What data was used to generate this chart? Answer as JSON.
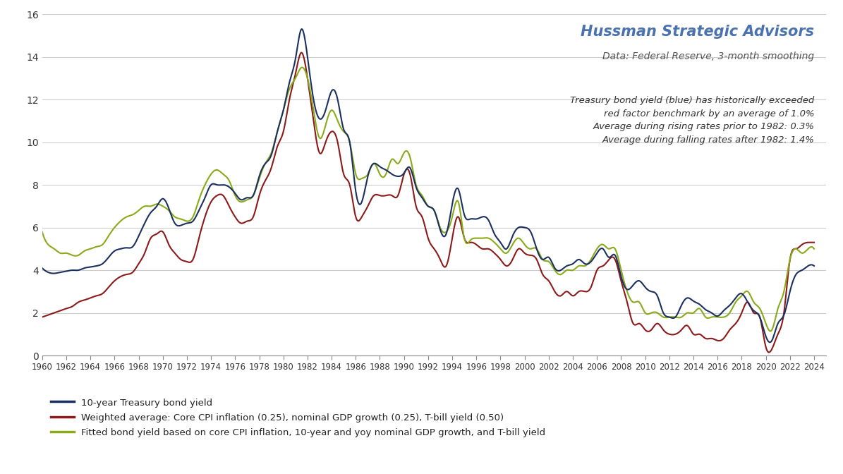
{
  "title": "Hussman Strategic Advisors",
  "subtitle": "Data: Federal Reserve, 3-month smoothing",
  "annotation_line1": "Treasury bond yield (blue) has historically exceeded",
  "annotation_line2": "red factor benchmark by an average of 1.0%",
  "annotation_line3": "Average during rising rates prior to 1982: 0.3%",
  "annotation_line4": "Average during falling rates after 1982: 1.4%",
  "legend": [
    "10-year Treasury bond yield",
    "Weighted average: Core CPI inflation (0.25), nominal GDP growth (0.25), T-bill yield (0.50)",
    "Fitted bond yield based on core CPI inflation, 10-year and yoy nominal GDP growth, and T-bill yield"
  ],
  "colors": {
    "navy": "#1c3060",
    "darkred": "#8b1a1a",
    "olive": "#8aaa1a",
    "title": "#4a72b0",
    "subtitle": "#555555",
    "annotation": "#333333",
    "grid": "#cccccc",
    "background": "#ffffff"
  },
  "ylim": [
    0,
    16
  ],
  "yticks": [
    0,
    2,
    4,
    6,
    8,
    10,
    12,
    14,
    16
  ],
  "xlim": [
    1960,
    2025
  ],
  "years": [
    1960.0,
    1960.5,
    1961.0,
    1961.5,
    1962.0,
    1962.5,
    1963.0,
    1963.5,
    1964.0,
    1964.5,
    1965.0,
    1965.5,
    1966.0,
    1966.5,
    1967.0,
    1967.5,
    1968.0,
    1968.5,
    1969.0,
    1969.5,
    1970.0,
    1970.5,
    1971.0,
    1971.5,
    1972.0,
    1972.5,
    1973.0,
    1973.5,
    1974.0,
    1974.5,
    1975.0,
    1975.5,
    1976.0,
    1976.5,
    1977.0,
    1977.5,
    1978.0,
    1978.5,
    1979.0,
    1979.5,
    1980.0,
    1980.5,
    1981.0,
    1981.5,
    1982.0,
    1982.5,
    1983.0,
    1983.5,
    1984.0,
    1984.5,
    1985.0,
    1985.5,
    1986.0,
    1986.5,
    1987.0,
    1987.5,
    1988.0,
    1988.5,
    1989.0,
    1989.5,
    1990.0,
    1990.5,
    1991.0,
    1991.5,
    1992.0,
    1992.5,
    1993.0,
    1993.5,
    1994.0,
    1994.5,
    1995.0,
    1995.5,
    1996.0,
    1996.5,
    1997.0,
    1997.5,
    1998.0,
    1998.5,
    1999.0,
    1999.5,
    2000.0,
    2000.5,
    2001.0,
    2001.5,
    2002.0,
    2002.5,
    2003.0,
    2003.5,
    2004.0,
    2004.5,
    2005.0,
    2005.5,
    2006.0,
    2006.5,
    2007.0,
    2007.5,
    2008.0,
    2008.5,
    2009.0,
    2009.5,
    2010.0,
    2010.5,
    2011.0,
    2011.5,
    2012.0,
    2012.5,
    2013.0,
    2013.5,
    2014.0,
    2014.5,
    2015.0,
    2015.5,
    2016.0,
    2016.5,
    2017.0,
    2017.5,
    2018.0,
    2018.5,
    2019.0,
    2019.5,
    2020.0,
    2020.5,
    2021.0,
    2021.5,
    2022.0,
    2022.5,
    2023.0,
    2023.5,
    2024.0
  ],
  "treasury_10y": [
    4.1,
    3.9,
    3.85,
    3.9,
    3.95,
    4.0,
    4.0,
    4.1,
    4.15,
    4.2,
    4.3,
    4.6,
    4.9,
    5.0,
    5.05,
    5.1,
    5.6,
    6.2,
    6.7,
    7.0,
    7.35,
    6.9,
    6.2,
    6.1,
    6.2,
    6.3,
    6.8,
    7.4,
    8.0,
    8.0,
    8.0,
    7.9,
    7.6,
    7.3,
    7.4,
    7.5,
    8.4,
    9.0,
    9.4,
    10.5,
    11.5,
    12.8,
    13.9,
    15.3,
    14.0,
    12.0,
    11.1,
    11.5,
    12.4,
    12.0,
    10.6,
    10.0,
    7.7,
    7.2,
    8.4,
    9.0,
    8.85,
    8.7,
    8.5,
    8.4,
    8.55,
    8.8,
    7.9,
    7.4,
    7.0,
    6.8,
    5.9,
    5.7,
    7.1,
    7.8,
    6.6,
    6.4,
    6.4,
    6.5,
    6.35,
    5.7,
    5.3,
    5.0,
    5.6,
    6.0,
    6.0,
    5.8,
    5.0,
    4.5,
    4.6,
    4.1,
    4.0,
    4.2,
    4.3,
    4.5,
    4.3,
    4.4,
    4.8,
    5.0,
    4.6,
    4.7,
    3.7,
    3.1,
    3.3,
    3.5,
    3.2,
    3.0,
    2.8,
    2.0,
    1.8,
    1.8,
    2.35,
    2.7,
    2.55,
    2.4,
    2.15,
    2.0,
    1.85,
    2.1,
    2.35,
    2.7,
    2.9,
    2.5,
    2.1,
    1.8,
    0.9,
    0.7,
    1.5,
    1.9,
    3.0,
    3.8,
    4.0,
    4.2,
    4.2
  ],
  "weighted_avg": [
    1.8,
    1.9,
    2.0,
    2.1,
    2.2,
    2.3,
    2.5,
    2.6,
    2.7,
    2.8,
    2.9,
    3.2,
    3.5,
    3.7,
    3.8,
    3.9,
    4.3,
    4.8,
    5.5,
    5.7,
    5.8,
    5.2,
    4.8,
    4.5,
    4.4,
    4.5,
    5.5,
    6.5,
    7.2,
    7.5,
    7.5,
    7.0,
    6.5,
    6.2,
    6.3,
    6.5,
    7.5,
    8.2,
    8.8,
    9.8,
    10.5,
    12.0,
    13.2,
    14.2,
    13.0,
    11.0,
    9.5,
    10.0,
    10.5,
    10.0,
    8.5,
    8.0,
    6.5,
    6.5,
    7.0,
    7.5,
    7.5,
    7.5,
    7.5,
    7.5,
    8.5,
    8.5,
    7.0,
    6.5,
    5.5,
    5.0,
    4.5,
    4.2,
    5.5,
    6.5,
    5.5,
    5.3,
    5.2,
    5.0,
    5.0,
    4.8,
    4.5,
    4.2,
    4.5,
    5.0,
    4.8,
    4.7,
    4.5,
    3.8,
    3.5,
    3.0,
    2.8,
    3.0,
    2.8,
    3.0,
    3.0,
    3.2,
    4.0,
    4.2,
    4.5,
    4.5,
    3.5,
    2.5,
    1.5,
    1.5,
    1.2,
    1.2,
    1.5,
    1.2,
    1.0,
    1.0,
    1.2,
    1.4,
    1.0,
    1.0,
    0.8,
    0.8,
    0.7,
    0.8,
    1.2,
    1.5,
    2.0,
    2.5,
    2.0,
    1.8,
    0.4,
    0.3,
    1.0,
    2.0,
    4.5,
    5.0,
    5.2,
    5.3,
    5.3
  ],
  "fitted_yield": [
    5.8,
    5.2,
    5.0,
    4.8,
    4.8,
    4.7,
    4.7,
    4.9,
    5.0,
    5.1,
    5.2,
    5.6,
    6.0,
    6.3,
    6.5,
    6.6,
    6.8,
    7.0,
    7.0,
    7.1,
    7.0,
    6.8,
    6.5,
    6.4,
    6.3,
    6.5,
    7.3,
    8.0,
    8.5,
    8.7,
    8.5,
    8.2,
    7.5,
    7.2,
    7.3,
    7.5,
    8.3,
    9.0,
    9.5,
    10.5,
    11.5,
    12.5,
    13.0,
    13.5,
    13.0,
    11.5,
    10.2,
    10.8,
    11.5,
    11.0,
    10.5,
    10.0,
    8.5,
    8.3,
    8.5,
    9.0,
    8.5,
    8.5,
    9.2,
    9.0,
    9.5,
    9.3,
    8.0,
    7.5,
    7.0,
    6.8,
    6.0,
    5.8,
    6.5,
    7.2,
    5.5,
    5.4,
    5.5,
    5.5,
    5.5,
    5.3,
    5.0,
    4.8,
    5.2,
    5.5,
    5.2,
    5.0,
    5.0,
    4.5,
    4.4,
    4.0,
    3.8,
    4.0,
    4.0,
    4.2,
    4.2,
    4.5,
    5.0,
    5.2,
    5.0,
    5.0,
    4.0,
    3.0,
    2.5,
    2.5,
    2.0,
    2.0,
    2.0,
    1.8,
    1.8,
    1.8,
    1.8,
    2.0,
    2.0,
    2.2,
    1.8,
    1.8,
    1.8,
    1.8,
    2.0,
    2.5,
    2.8,
    3.0,
    2.5,
    2.2,
    1.5,
    1.2,
    2.2,
    3.0,
    4.5,
    5.0,
    4.8,
    5.0,
    5.0
  ]
}
